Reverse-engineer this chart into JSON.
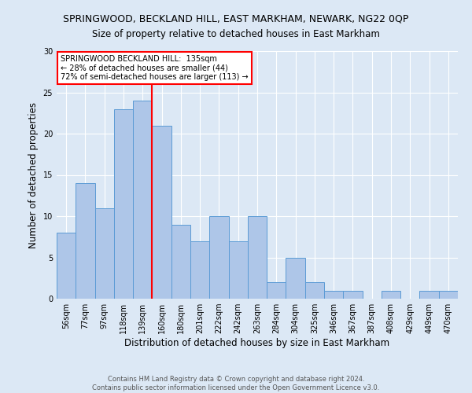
{
  "title": "SPRINGWOOD, BECKLAND HILL, EAST MARKHAM, NEWARK, NG22 0QP",
  "subtitle": "Size of property relative to detached houses in East Markham",
  "xlabel": "Distribution of detached houses by size in East Markham",
  "ylabel": "Number of detached properties",
  "footer_line1": "Contains HM Land Registry data © Crown copyright and database right 2024.",
  "footer_line2": "Contains public sector information licensed under the Open Government Licence v3.0.",
  "categories": [
    "56sqm",
    "77sqm",
    "97sqm",
    "118sqm",
    "139sqm",
    "160sqm",
    "180sqm",
    "201sqm",
    "222sqm",
    "242sqm",
    "263sqm",
    "284sqm",
    "304sqm",
    "325sqm",
    "346sqm",
    "367sqm",
    "387sqm",
    "408sqm",
    "429sqm",
    "449sqm",
    "470sqm"
  ],
  "values": [
    8,
    14,
    11,
    23,
    24,
    21,
    9,
    7,
    10,
    7,
    10,
    2,
    5,
    2,
    1,
    1,
    0,
    1,
    0,
    1,
    1
  ],
  "bar_color": "#aec6e8",
  "bar_edge_color": "#5b9bd5",
  "bar_width": 1.0,
  "ylim": [
    0,
    30
  ],
  "yticks": [
    0,
    5,
    10,
    15,
    20,
    25,
    30
  ],
  "annotation_line1": "SPRINGWOOD BECKLAND HILL:  135sqm",
  "annotation_line2": "← 28% of detached houses are smaller (44)",
  "annotation_line3": "72% of semi-detached houses are larger (113) →",
  "red_line_x": 4.5,
  "bg_color": "#dce8f5",
  "grid_color": "#ffffff",
  "title_fontsize": 9,
  "subtitle_fontsize": 8.5,
  "ylabel_fontsize": 8.5,
  "xlabel_fontsize": 8.5,
  "tick_fontsize": 7,
  "annot_fontsize": 7,
  "footer_fontsize": 6
}
